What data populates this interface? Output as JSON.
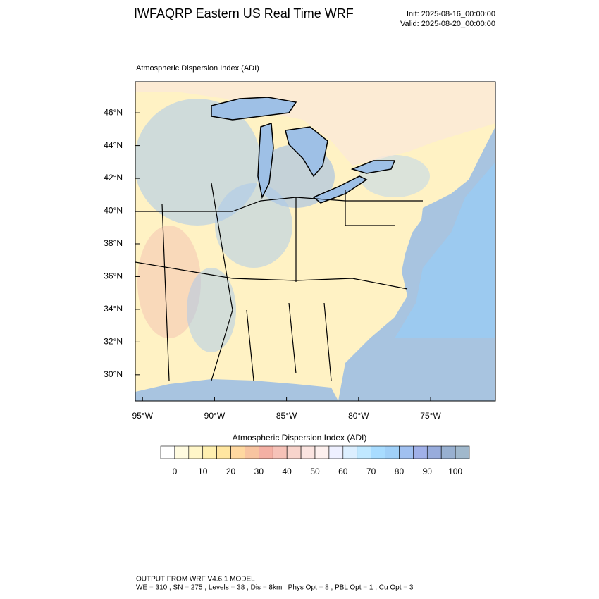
{
  "header": {
    "title": "IWFAQRP Eastern US Real Time WRF",
    "init": "Init: 2025-08-16_00:00:00",
    "valid": "Valid: 2025-08-20_00:00:00"
  },
  "map": {
    "subtitle": "Atmospheric Dispersion Index   (ADI)",
    "lonlim": [
      -95.5,
      -70.5
    ],
    "latlim": [
      28.4,
      47.9
    ],
    "lonticks": [
      {
        "value": -95,
        "label": "95°W"
      },
      {
        "value": -90,
        "label": "90°W"
      },
      {
        "value": -85,
        "label": "85°W"
      },
      {
        "value": -80,
        "label": "80°W"
      },
      {
        "value": -75,
        "label": "75°W"
      }
    ],
    "latticks": [
      {
        "value": 30,
        "label": "30°N"
      },
      {
        "value": 32,
        "label": "32°N"
      },
      {
        "value": 34,
        "label": "34°N"
      },
      {
        "value": 36,
        "label": "36°N"
      },
      {
        "value": 38,
        "label": "38°N"
      },
      {
        "value": 40,
        "label": "40°N"
      },
      {
        "value": 42,
        "label": "42°N"
      },
      {
        "value": 44,
        "label": "44°N"
      },
      {
        "value": 46,
        "label": "46°N"
      }
    ]
  },
  "colorbar": {
    "title": "Atmospheric Dispersion Index  (ADI)",
    "range": [
      -5,
      105
    ],
    "step": 5,
    "ticks": [
      0,
      10,
      20,
      30,
      40,
      50,
      60,
      70,
      80,
      90,
      100
    ],
    "colors": [
      "#ffffff",
      "#fffbe0",
      "#fff6c8",
      "#fff0b0",
      "#ffe6a0",
      "#ffd8a0",
      "#f8c4a0",
      "#f4b0a4",
      "#f6c2b8",
      "#f8d4cc",
      "#fbe4e0",
      "#fdf0ee",
      "#eef0ff",
      "#dcefff",
      "#c0e8ff",
      "#a8dcff",
      "#a0d0f8",
      "#a0c0f0",
      "#a0b0e8",
      "#98acdc",
      "#98b0d0",
      "#a0b8cc"
    ]
  },
  "footer": {
    "line1": "OUTPUT FROM WRF V4.6.1 MODEL",
    "line2": "WE = 310 ; SN = 275 ; Levels = 38 ; Dis = 8km ; Phys Opt = 8 ; PBL Opt = 1 ; Cu Opt = 3"
  }
}
